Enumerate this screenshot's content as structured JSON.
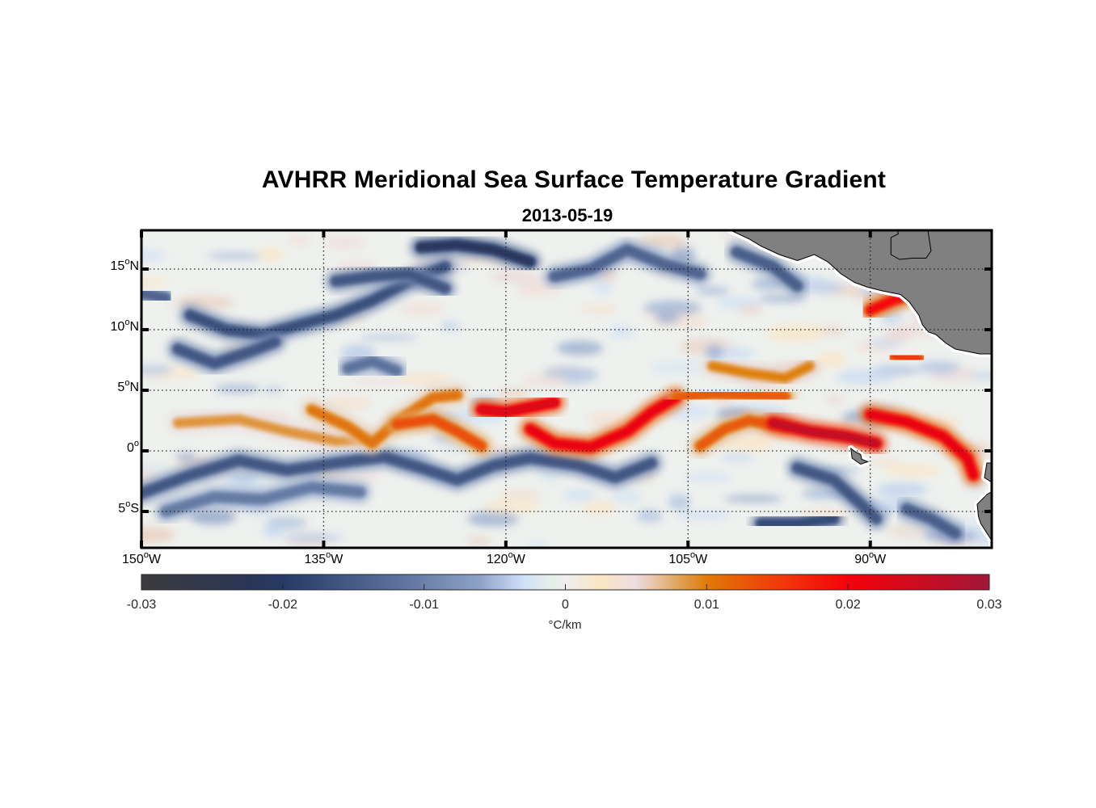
{
  "title": "AVHRR Meridional Sea Surface Temperature Gradient",
  "subtitle": "2013-05-19",
  "map": {
    "projection": "equirectangular",
    "lon_range": [
      -150,
      -80
    ],
    "lat_range": [
      -8,
      18.2
    ],
    "grid": "dotted",
    "land_color": "#808080",
    "frame_color": "#000000"
  },
  "lat_ticks": [
    {
      "value": 15,
      "num": "15",
      "deg": "o",
      "hemi": "N"
    },
    {
      "value": 10,
      "num": "10",
      "deg": "o",
      "hemi": "N"
    },
    {
      "value": 5,
      "num": "5",
      "deg": "o",
      "hemi": "N"
    },
    {
      "value": 0,
      "num": "0",
      "deg": "o",
      "hemi": ""
    },
    {
      "value": -5,
      "num": "5",
      "deg": "o",
      "hemi": "S"
    }
  ],
  "lon_ticks": [
    {
      "value": -150,
      "num": "150",
      "deg": "o",
      "hemi": "W"
    },
    {
      "value": -135,
      "num": "135",
      "deg": "o",
      "hemi": "W"
    },
    {
      "value": -120,
      "num": "120",
      "deg": "o",
      "hemi": "W"
    },
    {
      "value": -105,
      "num": "105",
      "deg": "o",
      "hemi": "W"
    },
    {
      "value": -90,
      "num": "90",
      "deg": "o",
      "hemi": "W"
    }
  ],
  "colorbar": {
    "range": [
      -0.03,
      0.03
    ],
    "ticks": [
      {
        "value": -0.03,
        "label": "-0.03"
      },
      {
        "value": -0.02,
        "label": "-0.02"
      },
      {
        "value": -0.01,
        "label": "-0.01"
      },
      {
        "value": 0,
        "label": "0"
      },
      {
        "value": 0.01,
        "label": "0.01"
      },
      {
        "value": 0.02,
        "label": "0.02"
      },
      {
        "value": 0.03,
        "label": "0.03"
      }
    ],
    "unit": "°C/km",
    "stops": [
      {
        "v": -0.03,
        "c": "#3b3b3d"
      },
      {
        "v": -0.022,
        "c": "#2a3658"
      },
      {
        "v": -0.02,
        "c": "#263a66"
      },
      {
        "v": -0.012,
        "c": "#5a6f99"
      },
      {
        "v": -0.006,
        "c": "#8fa3c8"
      },
      {
        "v": -0.003,
        "c": "#cfe0f7"
      },
      {
        "v": -0.001,
        "c": "#e6efe9"
      },
      {
        "v": 0,
        "c": "#eeeeee"
      },
      {
        "v": 0.0025,
        "c": "#fbe6c4"
      },
      {
        "v": 0.005,
        "c": "#ecdde0"
      },
      {
        "v": 0.008,
        "c": "#e0a35b"
      },
      {
        "v": 0.01,
        "c": "#df7a06"
      },
      {
        "v": 0.015,
        "c": "#f03c0a"
      },
      {
        "v": 0.02,
        "c": "#f5020a"
      },
      {
        "v": 0.03,
        "c": "#a11637"
      }
    ]
  },
  "features": {
    "warm_bands": [
      {
        "name": "equatorial-front-west",
        "lonlat": [
          [
            -147,
            2.3
          ],
          [
            -142,
            2.6
          ],
          [
            -138,
            1.6
          ],
          [
            -134,
            0.8
          ],
          [
            -131,
            1.0
          ]
        ],
        "value": 0.009
      },
      {
        "name": "wave-crest-1",
        "lonlat": [
          [
            -136,
            3.4
          ],
          [
            -133,
            2.0
          ],
          [
            -131,
            0.6
          ],
          [
            -129,
            2.4
          ],
          [
            -126,
            4.4
          ],
          [
            -124,
            4.6
          ]
        ],
        "value": 0.011
      },
      {
        "name": "wave-crest-2",
        "lonlat": [
          [
            -129,
            2.2
          ],
          [
            -126,
            2.6
          ],
          [
            -124,
            1.6
          ],
          [
            -122,
            0.4
          ]
        ],
        "value": 0.014
      },
      {
        "name": "front-120w",
        "lonlat": [
          [
            -122,
            3.4
          ],
          [
            -120,
            3.2
          ],
          [
            -118,
            3.6
          ],
          [
            -116,
            4.0
          ]
        ],
        "value": 0.024
      },
      {
        "name": "tiw-trough-1",
        "lonlat": [
          [
            -118,
            1.8
          ],
          [
            -116,
            0.6
          ],
          [
            -113,
            0.3
          ],
          [
            -110,
            1.6
          ],
          [
            -108,
            3.2
          ],
          [
            -106,
            4.4
          ]
        ],
        "value": 0.022
      },
      {
        "name": "front-105w",
        "lonlat": [
          [
            -106,
            4.4
          ],
          [
            -103,
            4.7
          ],
          [
            -100,
            4.6
          ],
          [
            -97,
            4.5
          ]
        ],
        "value": 0.013
      },
      {
        "name": "branch-100w",
        "lonlat": [
          [
            -104,
            0.4
          ],
          [
            -102,
            1.8
          ],
          [
            -100,
            2.5
          ],
          [
            -97,
            2.0
          ]
        ],
        "value": 0.013
      },
      {
        "name": "front-95w",
        "lonlat": [
          [
            -98,
            2.3
          ],
          [
            -95,
            1.6
          ],
          [
            -92,
            1.2
          ],
          [
            -89.5,
            0.6
          ]
        ],
        "value": 0.027
      },
      {
        "name": "galapagos-front",
        "lonlat": [
          [
            -90,
            3.0
          ],
          [
            -87,
            2.4
          ],
          [
            -84,
            1.2
          ],
          [
            -82,
            -0.6
          ],
          [
            -81.5,
            -2.0
          ]
        ],
        "value": 0.022
      },
      {
        "name": "front-north",
        "lonlat": [
          [
            -103,
            7.0
          ],
          [
            -100,
            6.4
          ],
          [
            -97,
            6.0
          ],
          [
            -95,
            7.0
          ]
        ],
        "value": 0.01
      },
      {
        "name": "panama-front",
        "lonlat": [
          [
            -90,
            11.6
          ],
          [
            -88.2,
            12.4
          ],
          [
            -87,
            12.8
          ]
        ],
        "value": 0.02
      },
      {
        "name": "costa-rica-patch",
        "lonlat": [
          [
            -88,
            7.8
          ],
          [
            -86,
            7.6
          ]
        ],
        "value": 0.016
      }
    ],
    "cold_bands": [
      {
        "name": "south-equatorial-1",
        "lonlat": [
          [
            -150,
            -3.5
          ],
          [
            -146,
            -2.0
          ],
          [
            -142,
            -0.8
          ],
          [
            -138,
            -1.6
          ],
          [
            -134,
            -1.0
          ],
          [
            -130,
            -0.5
          ],
          [
            -127,
            -1.4
          ],
          [
            -124,
            -2.4
          ],
          [
            -121,
            -1.2
          ],
          [
            -118,
            -0.6
          ],
          [
            -114,
            -1.2
          ],
          [
            -111,
            -2.2
          ],
          [
            -108,
            -1.0
          ]
        ],
        "value": -0.016
      },
      {
        "name": "south-lower",
        "lonlat": [
          [
            -148,
            -5.0
          ],
          [
            -144,
            -3.8
          ],
          [
            -140,
            -4.0
          ],
          [
            -136,
            -3.0
          ],
          [
            -132,
            -3.4
          ]
        ],
        "value": -0.011
      },
      {
        "name": "south-east",
        "lonlat": [
          [
            -96,
            -1.4
          ],
          [
            -93,
            -2.4
          ],
          [
            -91,
            -4.2
          ],
          [
            -89.5,
            -5.6
          ]
        ],
        "value": -0.016
      },
      {
        "name": "south-far-east",
        "lonlat": [
          [
            -87,
            -4.8
          ],
          [
            -85,
            -5.6
          ],
          [
            -83,
            -6.8
          ]
        ],
        "value": -0.015
      },
      {
        "name": "lens-south",
        "lonlat": [
          [
            -99,
            -6.0
          ],
          [
            -96,
            -6.0
          ],
          [
            -93,
            -5.6
          ]
        ],
        "value": -0.018
      },
      {
        "name": "north-ridge-1",
        "lonlat": [
          [
            -146,
            11.2
          ],
          [
            -143,
            10.0
          ],
          [
            -140,
            9.6
          ],
          [
            -137,
            10.4
          ],
          [
            -134,
            11.2
          ],
          [
            -131,
            12.4
          ],
          [
            -128,
            14.0
          ],
          [
            -125,
            15.2
          ]
        ],
        "value": -0.017
      },
      {
        "name": "north-ridge-2",
        "lonlat": [
          [
            -134,
            14.0
          ],
          [
            -131,
            14.4
          ],
          [
            -128,
            14.6
          ],
          [
            -125,
            13.4
          ]
        ],
        "value": -0.016
      },
      {
        "name": "north-top",
        "lonlat": [
          [
            -127,
            16.8
          ],
          [
            -124,
            17.0
          ],
          [
            -121,
            16.6
          ],
          [
            -118,
            15.6
          ]
        ],
        "value": -0.022
      },
      {
        "name": "north-loop",
        "lonlat": [
          [
            -147,
            8.4
          ],
          [
            -144,
            7.2
          ],
          [
            -141,
            8.2
          ],
          [
            -139,
            9.0
          ]
        ],
        "value": -0.016
      },
      {
        "name": "north-mid",
        "lonlat": [
          [
            -116,
            14.4
          ],
          [
            -113,
            15.0
          ],
          [
            -110,
            16.6
          ],
          [
            -107,
            15.4
          ],
          [
            -104,
            14.6
          ]
        ],
        "value": -0.014
      },
      {
        "name": "north-east",
        "lonlat": [
          [
            -101,
            16.4
          ],
          [
            -98,
            15.2
          ],
          [
            -96,
            13.6
          ]
        ],
        "value": -0.015
      },
      {
        "name": "west-edge",
        "lonlat": [
          [
            -150,
            13.0
          ],
          [
            -148,
            12.6
          ]
        ],
        "value": -0.014
      },
      {
        "name": "mid-patch",
        "lonlat": [
          [
            -133,
            6.8
          ],
          [
            -131,
            7.4
          ],
          [
            -129,
            6.6
          ]
        ],
        "value": -0.012
      }
    ]
  }
}
